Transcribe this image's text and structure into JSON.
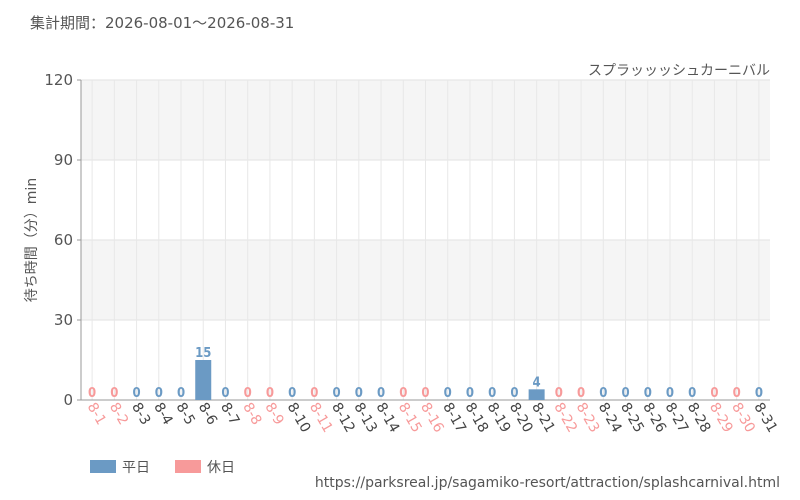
{
  "chart_data": {
    "type": "bar",
    "title": "集計期間：2026-08-01～2026-08-31",
    "subtitle": "スプラッッッシュカーニバル",
    "y_label": "待ち時間（分）min",
    "source": "https://parksreal.jp/sagamiko-resort/attraction/splashcarnival.html",
    "categories": [
      "8-1",
      "8-2",
      "8-3",
      "8-4",
      "8-5",
      "8-6",
      "8-7",
      "8-8",
      "8-9",
      "8-10",
      "8-11",
      "8-12",
      "8-13",
      "8-14",
      "8-15",
      "8-16",
      "8-17",
      "8-18",
      "8-19",
      "8-20",
      "8-21",
      "8-22",
      "8-23",
      "8-24",
      "8-25",
      "8-26",
      "8-27",
      "8-28",
      "8-29",
      "8-30",
      "8-31"
    ],
    "series": [
      {
        "name": "平日",
        "color": "#6b9ac4",
        "values": [
          null,
          null,
          0,
          0,
          0,
          15,
          0,
          null,
          null,
          0,
          null,
          0,
          0,
          0,
          null,
          null,
          0,
          0,
          0,
          0,
          4,
          null,
          null,
          0,
          0,
          0,
          0,
          0,
          null,
          null,
          0
        ]
      },
      {
        "name": "休日",
        "color": "#f79a9a",
        "values": [
          0,
          0,
          null,
          null,
          null,
          null,
          null,
          0,
          0,
          null,
          0,
          null,
          null,
          null,
          0,
          0,
          null,
          null,
          null,
          null,
          null,
          0,
          0,
          null,
          null,
          null,
          null,
          null,
          0,
          0,
          null
        ]
      }
    ],
    "ylim": [
      0,
      120
    ],
    "yticks": [
      0,
      30,
      60,
      90,
      120
    ],
    "grid": true
  }
}
